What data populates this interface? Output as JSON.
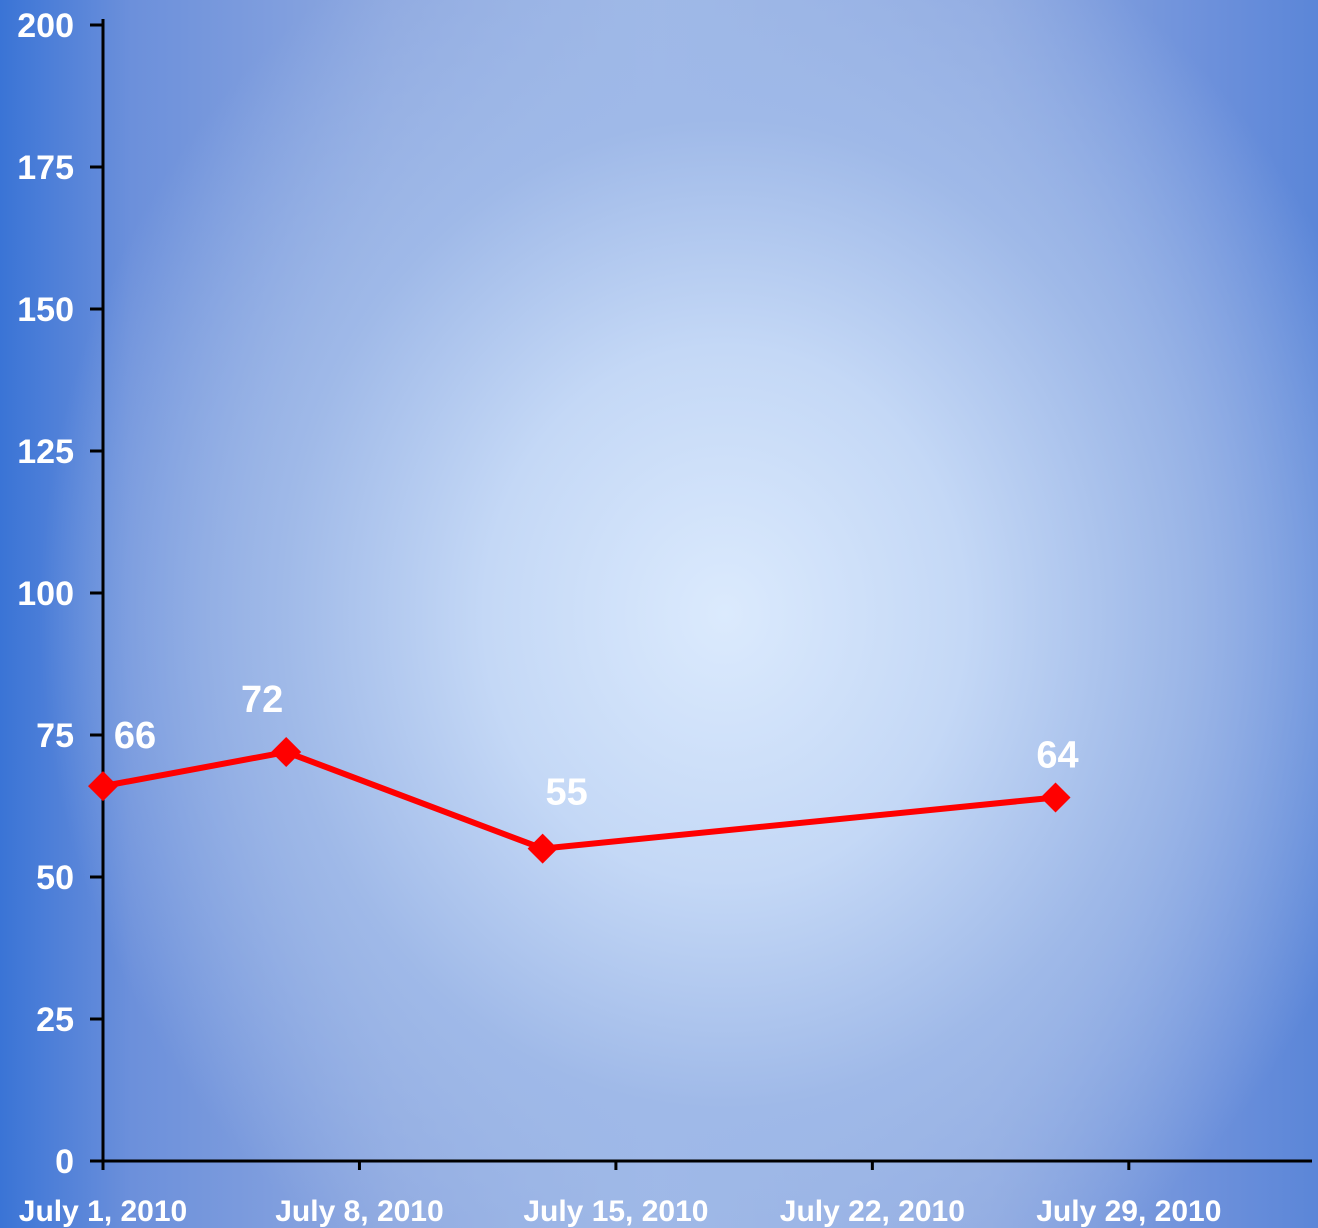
{
  "chart_data": {
    "type": "line",
    "title": "",
    "xlabel": "",
    "ylabel": "",
    "ylim": [
      0,
      200
    ],
    "yticks": [
      0,
      25,
      50,
      75,
      100,
      125,
      150,
      175,
      200
    ],
    "xlim": [
      "July 1, 2010",
      "August 3, 2010"
    ],
    "xticks": [
      {
        "date": "July 1, 2010",
        "label": "July 1, 2010"
      },
      {
        "date": "July 8, 2010",
        "label": "July 8, 2010"
      },
      {
        "date": "July 15, 2010",
        "label": "July 15, 2010"
      },
      {
        "date": "July 22, 2010",
        "label": "July 22, 2010"
      },
      {
        "date": "July 29, 2010",
        "label": "July 29, 2010"
      }
    ],
    "series": [
      {
        "color": "#ff0000",
        "points": [
          {
            "x": "July 1, 2010",
            "y": 66,
            "label": "66"
          },
          {
            "x": "July 6, 2010",
            "y": 72,
            "label": "72"
          },
          {
            "x": "July 13, 2010",
            "y": 55,
            "label": "55"
          },
          {
            "x": "July 27, 2010",
            "y": 64,
            "label": "64"
          }
        ]
      }
    ],
    "grid": false,
    "legend": "none",
    "colors": {
      "axis": "#000000",
      "labels": "#ffffff",
      "line": "#ff0000"
    }
  }
}
